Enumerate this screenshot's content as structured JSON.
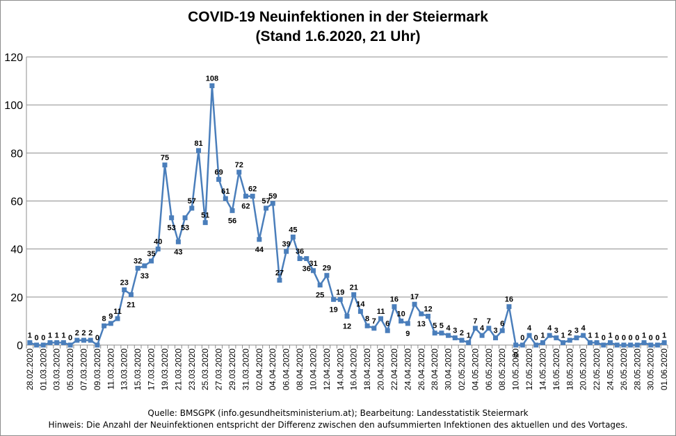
{
  "chart_data": {
    "type": "line",
    "title": "COVID-19 Neuinfektionen in der Steiermark",
    "subtitle": "(Stand 1.6.2020, 21 Uhr)",
    "ylim": [
      0,
      120
    ],
    "yticks": [
      0,
      20,
      40,
      60,
      80,
      100,
      120
    ],
    "grid": true,
    "series_color": "#4a7ebb",
    "x": [
      "28.02.2020",
      "29.02.2020",
      "01.03.2020",
      "02.03.2020",
      "03.03.2020",
      "04.03.2020",
      "05.03.2020",
      "06.03.2020",
      "07.03.2020",
      "08.03.2020",
      "09.03.2020",
      "10.03.2020",
      "11.03.2020",
      "12.03.2020",
      "13.03.2020",
      "14.03.2020",
      "15.03.2020",
      "16.03.2020",
      "17.03.2020",
      "18.03.2020",
      "19.03.2020",
      "20.03.2020",
      "21.03.2020",
      "22.03.2020",
      "23.03.2020",
      "24.03.2020",
      "25.03.2020",
      "26.03.2020",
      "27.03.2020",
      "28.03.2020",
      "29.03.2020",
      "30.03.2020",
      "31.03.2020",
      "01.04.2020",
      "02.04.2020",
      "03.04.2020",
      "04.04.2020",
      "05.04.2020",
      "06.04.2020",
      "07.04.2020",
      "08.04.2020",
      "09.04.2020",
      "10.04.2020",
      "11.04.2020",
      "12.04.2020",
      "13.04.2020",
      "14.04.2020",
      "15.04.2020",
      "16.04.2020",
      "17.04.2020",
      "18.04.2020",
      "19.04.2020",
      "20.04.2020",
      "21.04.2020",
      "22.04.2020",
      "23.04.2020",
      "24.04.2020",
      "25.04.2020",
      "26.04.2020",
      "27.04.2020",
      "28.04.2020",
      "29.04.2020",
      "30.04.2020",
      "01.05.2020",
      "02.05.2020",
      "03.05.2020",
      "04.05.2020",
      "05.05.2020",
      "06.05.2020",
      "07.05.2020",
      "08.05.2020",
      "09.05.2020",
      "10.05.2020",
      "11.05.2020",
      "12.05.2020",
      "13.05.2020",
      "14.05.2020",
      "15.05.2020",
      "16.05.2020",
      "17.05.2020",
      "18.05.2020",
      "19.05.2020",
      "20.05.2020",
      "21.05.2020",
      "22.05.2020",
      "23.05.2020",
      "24.05.2020",
      "25.05.2020",
      "26.05.2020",
      "27.05.2020",
      "28.05.2020",
      "29.05.2020",
      "30.05.2020",
      "31.05.2020",
      "01.06.2020"
    ],
    "values": [
      1,
      0,
      0,
      1,
      1,
      1,
      0,
      2,
      2,
      2,
      0,
      8,
      9,
      11,
      23,
      21,
      32,
      33,
      35,
      40,
      75,
      53,
      43,
      53,
      57,
      81,
      51,
      108,
      69,
      61,
      56,
      72,
      62,
      62,
      44,
      57,
      59,
      27,
      39,
      45,
      36,
      36,
      31,
      25,
      29,
      19,
      19,
      12,
      21,
      14,
      8,
      7,
      11,
      6,
      16,
      10,
      9,
      17,
      13,
      12,
      5,
      5,
      4,
      3,
      2,
      1,
      7,
      4,
      7,
      3,
      6,
      16,
      0,
      0,
      4,
      0,
      1,
      4,
      3,
      1,
      2,
      3,
      4,
      1,
      1,
      0,
      1,
      0,
      0,
      0,
      0,
      1,
      0,
      0,
      1
    ],
    "label_position": [
      "a",
      "a",
      "a",
      "a",
      "a",
      "a",
      "a",
      "a",
      "a",
      "a",
      "a",
      "a",
      "a",
      "a",
      "a",
      "b",
      "a",
      "b",
      "a",
      "a",
      "a",
      "b",
      "b",
      "b",
      "a",
      "a",
      "a",
      "a",
      "a",
      "a",
      "b",
      "a",
      "b",
      "a",
      "b",
      "a",
      "a",
      "a",
      "a",
      "a",
      "a",
      "b",
      "a",
      "b",
      "a",
      "b",
      "a",
      "b",
      "a",
      "a",
      "a",
      "a",
      "a",
      "a",
      "a",
      "a",
      "b",
      "a",
      "b",
      "a",
      "a",
      "a",
      "a",
      "a",
      "a",
      "a",
      "a",
      "a",
      "a",
      "a",
      "a",
      "a",
      "b",
      "a",
      "a",
      "a",
      "a",
      "a",
      "a",
      "a",
      "a",
      "a",
      "a",
      "a",
      "a",
      "a",
      "a",
      "a",
      "a",
      "a",
      "a",
      "a",
      "a",
      "a",
      "a"
    ]
  },
  "footer": {
    "source": "Quelle: BMSGPK (info.gesundheitsministerium.at); Bearbeitung: Landesstatistik Steiermark",
    "note": "Hinweis: Die Anzahl der Neuinfektionen entspricht der Differenz zwischen den aufsummierten Infektionen des aktuellen und des Vortages."
  }
}
